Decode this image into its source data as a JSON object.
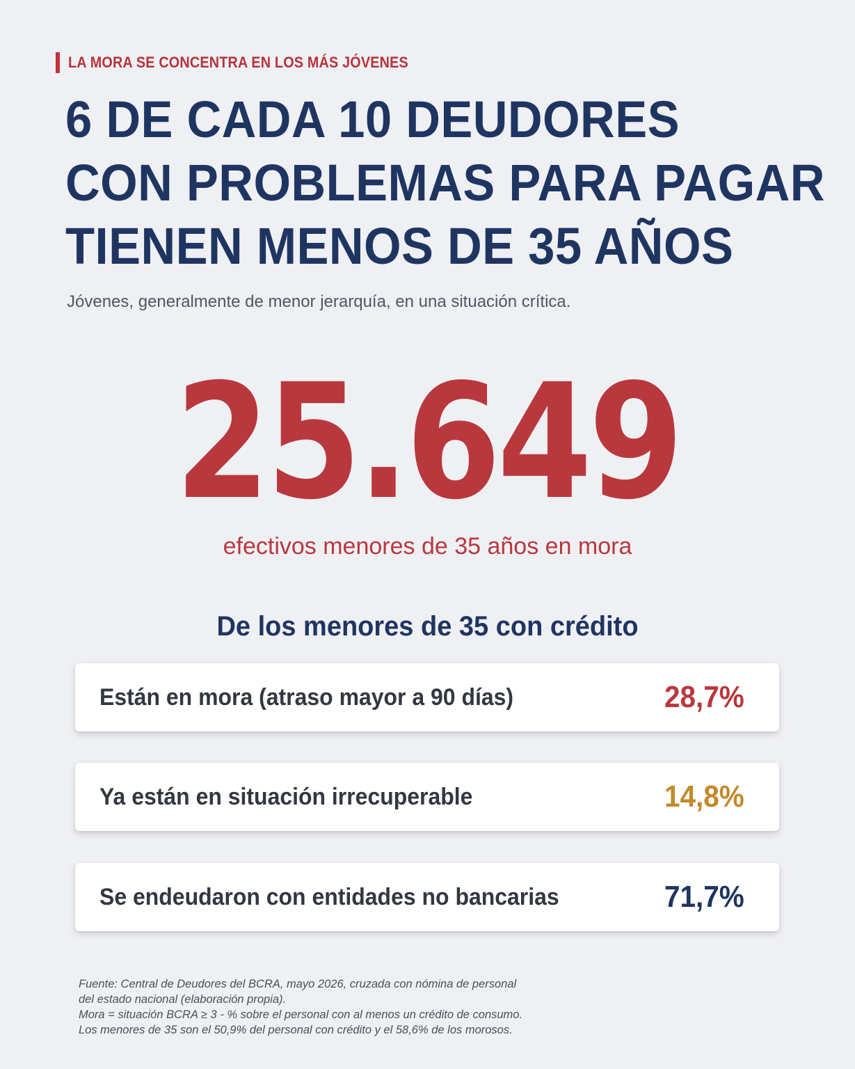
{
  "kicker": "LA MORA SE CONCENTRA EN LOS MÁS JÓVENES",
  "headline": {
    "line1": "6 DE CADA 10 DEUDORES",
    "line2": "CON PROBLEMAS PARA PAGAR",
    "line3": "TIENEN MENOS DE 35 AÑOS"
  },
  "subtitle": "Jóvenes, generalmente de menor jerarquía, en una situación crítica.",
  "highlight": {
    "number": "25.649",
    "caption": "efectivos menores de 35 años en mora"
  },
  "section_title": "De los menores de 35 con crédito",
  "stats": [
    {
      "label": "Están en mora (atraso mayor a 90 días)",
      "value": "28,7%",
      "color": "#b9383d"
    },
    {
      "label": "Ya están en situación irrecuperable",
      "value": "14,8%",
      "color": "#c28a2c"
    },
    {
      "label": "Se endeudaron con entidades no bancarias",
      "value": "71,7%",
      "color": "#1f3561"
    }
  ],
  "footnote": {
    "line1": "Fuente: Central de Deudores del BCRA, mayo 2026, cruzada con nómina de personal",
    "line2": "del estado nacional (elaboración propia).",
    "line3": "Mora = situación BCRA ≥ 3 - % sobre el personal con al menos un crédito de consumo.",
    "line4": "Los menores de 35 son el 50,9% del personal con crédito y el 58,6% de los morosos."
  },
  "colors": {
    "accent_red": "#b9383d",
    "navy": "#1f3561",
    "gold": "#c28a2c",
    "background": "#eff0f4"
  }
}
